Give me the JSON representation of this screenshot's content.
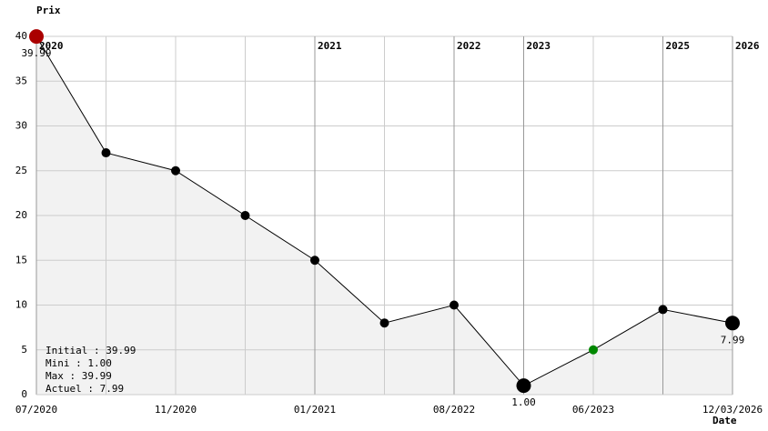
{
  "chart_data": {
    "type": "line",
    "y_label": "Prix",
    "x_label": "Date",
    "categories": [
      "07/2020",
      null,
      "11/2020",
      null,
      "01/2021",
      null,
      "08/2022",
      null,
      "06/2023",
      null,
      "12/03/2026"
    ],
    "year_labels": [
      "2020",
      null,
      null,
      null,
      "2021",
      null,
      "2022",
      "2023",
      null,
      "2025",
      "2026"
    ],
    "values": [
      39.99,
      27,
      25,
      20,
      15,
      8,
      10,
      1.0,
      5,
      9.5,
      7.99
    ],
    "value_labels": [
      "39.99",
      null,
      null,
      null,
      null,
      null,
      null,
      "1.00",
      null,
      null,
      "7.99"
    ],
    "point_colors": [
      "#aa0000",
      "#000000",
      "#000000",
      "#000000",
      "#000000",
      "#000000",
      "#000000",
      "#000000",
      "#008800",
      "#000000",
      "#000000"
    ],
    "color": "#000000",
    "area_color": "#f2f2f2",
    "ylim": [
      0,
      40
    ],
    "yticks": [
      0,
      5,
      10,
      15,
      20,
      25,
      30,
      35,
      40
    ],
    "grid": true,
    "summary": [
      {
        "text": "Initial : 39.99",
        "color": "#000000"
      },
      {
        "text": "Mini : 1.00",
        "color": "#008800"
      },
      {
        "text": "Max : 39.99",
        "color": "#aa0000"
      },
      {
        "text": "Actuel : 7.99",
        "color": "#000000"
      }
    ]
  }
}
